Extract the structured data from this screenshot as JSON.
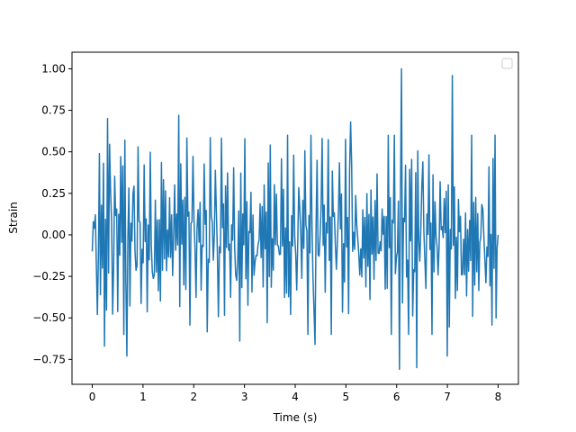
{
  "chart_data": {
    "type": "line",
    "title": "",
    "xlabel": "Time (s)",
    "ylabel": "Strain",
    "xlim": [
      -0.4,
      8.4
    ],
    "ylim": [
      -0.9,
      1.1
    ],
    "xticks": [
      0,
      1,
      2,
      3,
      4,
      5,
      6,
      7,
      8
    ],
    "xtick_labels": [
      "0",
      "1",
      "2",
      "3",
      "4",
      "5",
      "6",
      "7",
      "8"
    ],
    "yticks": [
      -0.75,
      -0.5,
      -0.25,
      0.0,
      0.25,
      0.5,
      0.75,
      1.0
    ],
    "ytick_labels": [
      "−0.75",
      "−0.50",
      "−0.25",
      "0.00",
      "0.25",
      "0.50",
      "0.75",
      "1.00"
    ],
    "grid": false,
    "legend": {
      "placement": "upper-right",
      "entries": []
    },
    "series": [
      {
        "color": "#1f77b4",
        "sample_count": 400,
        "x_range": [
          0,
          8
        ],
        "envelope_peaks": [
          {
            "x": 0.05,
            "y": 0.04
          },
          {
            "x": 0.1,
            "y": 0.64
          },
          {
            "x": 0.1,
            "y": -0.48
          },
          {
            "x": 0.3,
            "y": 0.7
          },
          {
            "x": 0.25,
            "y": -0.67
          },
          {
            "x": 0.65,
            "y": 0.57
          },
          {
            "x": 0.68,
            "y": -0.73
          },
          {
            "x": 1.7,
            "y": 0.72
          },
          {
            "x": 2.9,
            "y": 0.73
          },
          {
            "x": 2.9,
            "y": -0.64
          },
          {
            "x": 4.4,
            "y": 0.69
          },
          {
            "x": 4.4,
            "y": -0.66
          },
          {
            "x": 5.1,
            "y": 0.68
          },
          {
            "x": 6.05,
            "y": -0.81
          },
          {
            "x": 6.1,
            "y": 1.0
          },
          {
            "x": 6.4,
            "y": 0.77
          },
          {
            "x": 6.4,
            "y": -0.8
          },
          {
            "x": 7.0,
            "y": -0.73
          },
          {
            "x": 7.1,
            "y": 0.96
          },
          {
            "x": 7.9,
            "y": 0.46
          },
          {
            "x": 8.0,
            "y": 0.0
          }
        ]
      }
    ]
  },
  "colors": {
    "line": "#1f77b4",
    "axes": "#000000",
    "background": "#ffffff"
  }
}
